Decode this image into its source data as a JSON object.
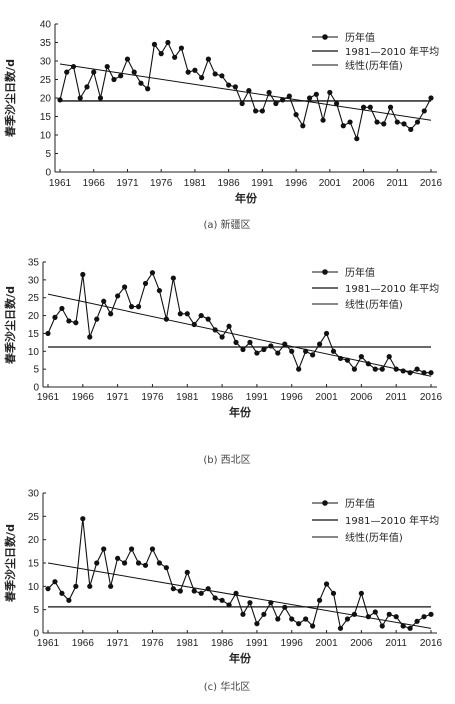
{
  "chart_data": [
    {
      "type": "line",
      "caption": "(a) 新疆区",
      "ylabel": "春季沙尘日数/d",
      "xlabel": "年份",
      "ylim": [
        0,
        40
      ],
      "yticks": [
        0,
        5,
        10,
        15,
        20,
        25,
        30,
        35,
        40
      ],
      "xticks": [
        1961,
        1966,
        1971,
        1976,
        1981,
        1986,
        1991,
        1996,
        2001,
        2006,
        2011,
        2016
      ],
      "legend_position": "top-right",
      "legend": [
        "历年值",
        "1981—2010 年平均",
        "线性(历年值)"
      ],
      "x_start": 1961,
      "values": [
        19.5,
        27,
        28.5,
        20,
        23,
        27,
        20,
        28.5,
        25,
        26,
        30.5,
        27,
        24,
        22.5,
        34.5,
        32,
        35,
        31,
        33.5,
        27,
        27.5,
        25.5,
        30.5,
        26.5,
        26,
        23.5,
        23,
        18.5,
        22,
        16.5,
        16.5,
        21.5,
        18.5,
        19.5,
        20.5,
        15.5,
        12.5,
        20,
        21,
        14,
        21.5,
        18.5,
        12.5,
        13.5,
        9,
        17.5,
        17.5,
        13.5,
        13,
        17.5,
        13.5,
        13,
        11.5,
        13.5,
        16.5,
        20
      ],
      "mean": 19.2,
      "trend": [
        29.2,
        14.0
      ]
    },
    {
      "type": "line",
      "caption": "(b) 西北区",
      "ylabel": "春季沙尘日数/d",
      "xlabel": "年份",
      "ylim": [
        0,
        35
      ],
      "yticks": [
        0,
        5,
        10,
        15,
        20,
        25,
        30,
        35
      ],
      "xticks": [
        1961,
        1966,
        1971,
        1976,
        1981,
        1986,
        1991,
        1996,
        2001,
        2006,
        2011,
        2016
      ],
      "legend_position": "top-right",
      "legend": [
        "历年值",
        "1981—2010 年平均",
        "线性(历年值)"
      ],
      "x_start": 1961,
      "values": [
        15,
        19.5,
        22,
        18.5,
        18,
        31.5,
        14,
        19,
        24,
        20.5,
        25.5,
        28,
        22.5,
        22.5,
        29,
        32,
        27,
        19,
        30.5,
        20.5,
        20.5,
        17.5,
        20,
        19,
        16,
        14,
        17,
        12.5,
        10.5,
        12.5,
        9.5,
        10.5,
        11.5,
        9.5,
        12,
        10,
        5,
        10,
        9,
        12,
        15,
        10,
        8,
        7.5,
        5,
        8.5,
        6.5,
        5,
        5,
        8.5,
        5,
        4.5,
        4,
        5,
        4,
        4
      ],
      "mean": 11.2,
      "trend": [
        26.0,
        3.0
      ]
    },
    {
      "type": "line",
      "caption": "(c) 华北区",
      "ylabel": "春季沙尘日数/d",
      "xlabel": "年份",
      "ylim": [
        0,
        30
      ],
      "yticks": [
        0,
        5,
        10,
        15,
        20,
        25,
        30
      ],
      "xticks": [
        1961,
        1966,
        1971,
        1976,
        1981,
        1986,
        1991,
        1996,
        2001,
        2006,
        2011,
        2016
      ],
      "legend_position": "top-right",
      "legend": [
        "历年值",
        "1981—2010 年平均",
        "线性(历年值)"
      ],
      "x_start": 1961,
      "values": [
        9.5,
        11,
        8.5,
        7,
        10,
        24.5,
        10,
        15,
        18,
        10,
        16,
        15,
        18,
        15,
        14.5,
        18,
        15,
        14,
        9.5,
        9,
        13,
        9,
        8.5,
        9.5,
        7.5,
        7,
        6,
        8.5,
        4,
        6.5,
        2,
        4,
        6.5,
        3,
        5.5,
        3,
        2,
        3,
        1.5,
        7,
        10.5,
        8.5,
        1,
        3,
        4,
        8.5,
        3.5,
        4.5,
        1.5,
        4,
        3.5,
        1.5,
        1,
        2.5,
        3.5,
        4
      ],
      "mean": 5.6,
      "trend": [
        15.0,
        1.0
      ]
    }
  ]
}
